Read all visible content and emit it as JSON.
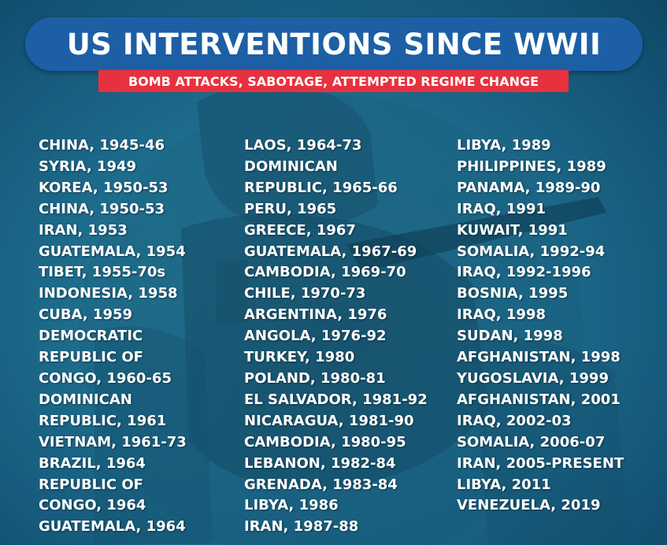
{
  "header": {
    "title": "US INTERVENTIONS SINCE WWII",
    "subtitle": "BOMB ATTACKS, SABOTAGE, ATTEMPTED REGIME CHANGE"
  },
  "colors": {
    "background": "#1f6f8f",
    "title_pill": "#1d5fa5",
    "subtitle_box": "#e8313f",
    "text": "#ffffff"
  },
  "columns": [
    [
      "CHINA, 1945-46",
      "SYRIA, 1949",
      "KOREA, 1950-53",
      "CHINA, 1950-53",
      "IRAN, 1953",
      "GUATEMALA, 1954",
      "TIBET, 1955-70s",
      "INDONESIA, 1958",
      "CUBA, 1959",
      "DEMOCRATIC",
      "REPUBLIC OF",
      "CONGO, 1960-65",
      "DOMINICAN",
      "REPUBLIC, 1961",
      "VIETNAM, 1961-73",
      "BRAZIL, 1964",
      "REPUBLIC OF",
      "CONGO, 1964",
      "GUATEMALA, 1964"
    ],
    [
      "LAOS, 1964-73",
      "DOMINICAN",
      "REPUBLIC, 1965-66",
      "PERU, 1965",
      "GREECE, 1967",
      "GUATEMALA, 1967-69",
      "CAMBODIA, 1969-70",
      "CHILE, 1970-73",
      "ARGENTINA, 1976",
      "ANGOLA, 1976-92",
      "TURKEY, 1980",
      "POLAND, 1980-81",
      "EL SALVADOR, 1981-92",
      "NICARAGUA, 1981-90",
      "CAMBODIA, 1980-95",
      "LEBANON, 1982-84",
      "GRENADA, 1983-84",
      "LIBYA, 1986",
      "IRAN, 1987-88"
    ],
    [
      "LIBYA, 1989",
      "PHILIPPINES, 1989",
      "PANAMA, 1989-90",
      "IRAQ, 1991",
      "KUWAIT, 1991",
      "SOMALIA, 1992-94",
      "IRAQ, 1992-1996",
      "BOSNIA, 1995",
      "IRAQ, 1998",
      "SUDAN, 1998",
      "AFGHANISTAN, 1998",
      "YUGOSLAVIA, 1999",
      "AFGHANISTAN, 2001",
      "IRAQ, 2002-03",
      "SOMALIA, 2006-07",
      "IRAN, 2005-PRESENT",
      "LIBYA, 2011",
      "VENEZUELA, 2019"
    ]
  ]
}
